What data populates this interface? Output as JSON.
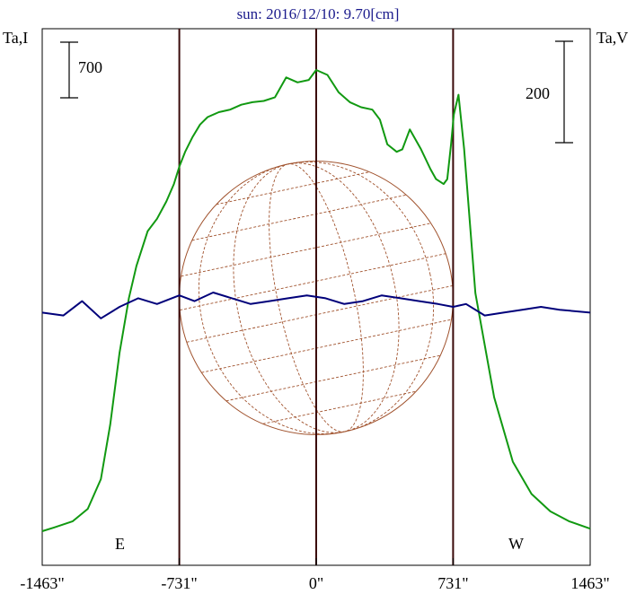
{
  "title": "sun: 2016/12/10: 9.70[cm]",
  "chart_data": {
    "type": "line",
    "title": "sun: 2016/12/10: 9.70[cm]",
    "left_axis_label": "Ta,I",
    "right_axis_label": "Ta,V",
    "x_ticks": [
      -1463,
      -731,
      0,
      731,
      1463
    ],
    "x_tick_labels": [
      "-1463\"",
      "-731\"",
      "0\"",
      "731\"",
      "1463\""
    ],
    "xlim": [
      -1463,
      1463
    ],
    "limb_labels": {
      "east": "E",
      "west": "W"
    },
    "limb_positions": [
      -731,
      731
    ],
    "scale_bars": {
      "intensity": "700",
      "polarization": "200"
    },
    "colors": {
      "intensity": "#119911",
      "polarization": "#00007a",
      "disk": "#a0522d",
      "markers": "#3a0a0a",
      "title": "#1a1a8c"
    },
    "series": [
      {
        "key": "intensity",
        "x": [
          -1463,
          -1400,
          -1300,
          -1220,
          -1150,
          -1100,
          -1050,
          -1000,
          -960,
          -900,
          -850,
          -800,
          -760,
          -731,
          -700,
          -660,
          -620,
          -580,
          -520,
          -460,
          -400,
          -340,
          -280,
          -220,
          -160,
          -100,
          -40,
          0,
          60,
          120,
          180,
          240,
          300,
          340,
          380,
          430,
          460,
          500,
          560,
          610,
          640,
          680,
          700,
          720,
          735,
          760,
          790,
          850,
          950,
          1050,
          1150,
          1250,
          1350,
          1463
        ],
        "y": [
          20,
          35,
          60,
          110,
          230,
          450,
          740,
          960,
          1090,
          1230,
          1280,
          1350,
          1420,
          1490,
          1550,
          1610,
          1660,
          1690,
          1710,
          1720,
          1740,
          1750,
          1755,
          1770,
          1850,
          1830,
          1840,
          1880,
          1860,
          1790,
          1750,
          1730,
          1720,
          1680,
          1580,
          1550,
          1560,
          1640,
          1560,
          1480,
          1440,
          1420,
          1440,
          1580,
          1700,
          1780,
          1560,
          980,
          560,
          300,
          170,
          100,
          60,
          30
        ]
      },
      {
        "key": "polarization",
        "x": [
          -1463,
          -1350,
          -1250,
          -1150,
          -1050,
          -950,
          -850,
          -731,
          -650,
          -550,
          -450,
          -350,
          -250,
          -150,
          -50,
          50,
          150,
          250,
          350,
          450,
          550,
          650,
          731,
          800,
          900,
          1000,
          1100,
          1200,
          1300,
          1463
        ],
        "y": [
          2,
          3,
          -2,
          4,
          0,
          -3,
          -1,
          -4,
          -2,
          -5,
          -3,
          -1,
          -2,
          -3,
          -4,
          -3,
          -1,
          -2,
          -4,
          -3,
          -2,
          -1,
          0,
          -1,
          3,
          2,
          1,
          0,
          1,
          2
        ]
      }
    ]
  }
}
